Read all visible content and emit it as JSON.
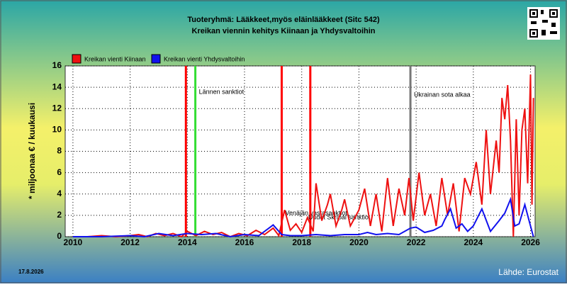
{
  "chart_data": {
    "type": "line",
    "title": "Tuoteryhmä: Lääkkeet,myös eläinlääkkeet (Sitc 542)",
    "subtitle": "Kreikan viennin kehitys  Kiinaan ja Yhdysvaltoihin",
    "y_label": "* miljoonaa € / kuukausi",
    "date": "17.8.2026",
    "source": "Lähde: Eurostat",
    "xlim": [
      2009.73,
      2026.16
    ],
    "xticks": [
      2010,
      2012,
      2014,
      2016,
      2018,
      2020,
      2022,
      2024,
      2026
    ],
    "ylim": [
      0,
      16
    ],
    "yticks": [
      0,
      2,
      4,
      6,
      8,
      10,
      12,
      14,
      16
    ],
    "grid": true,
    "events": [
      {
        "x": 2013.95,
        "color": "#ff0000"
      },
      {
        "x": 2014.28,
        "color": "#33dd33",
        "label": "Lännen sanktiot"
      },
      {
        "x": 2017.3,
        "color": "#ff0000",
        "label": "Venäjän vastasanktiot"
      },
      {
        "x": 2018.3,
        "color": "#ff0000",
        "label": "Uudet Skripal sanktiot"
      },
      {
        "x": 2021.8,
        "color": "#777777",
        "label": "Ukrainan sota alkaa"
      }
    ],
    "series": [
      {
        "name": "Kreikan vienti Kiinaan",
        "color": "#ee1111",
        "x": [
          2010.0,
          2010.5,
          2011.0,
          2011.5,
          2012.0,
          2012.3,
          2012.6,
          2012.9,
          2013.2,
          2013.5,
          2013.8,
          2014.0,
          2014.3,
          2014.6,
          2014.9,
          2015.2,
          2015.5,
          2015.8,
          2016.1,
          2016.4,
          2016.7,
          2017.0,
          2017.2,
          2017.4,
          2017.6,
          2017.8,
          2018.0,
          2018.2,
          2018.4,
          2018.5,
          2018.7,
          2018.9,
          2019.0,
          2019.2,
          2019.4,
          2019.5,
          2019.7,
          2019.9,
          2020.0,
          2020.2,
          2020.4,
          2020.6,
          2020.8,
          2021.0,
          2021.2,
          2021.4,
          2021.6,
          2021.75,
          2021.9,
          2022.1,
          2022.3,
          2022.5,
          2022.7,
          2022.9,
          2023.1,
          2023.3,
          2023.5,
          2023.7,
          2023.9,
          2024.1,
          2024.3,
          2024.45,
          2024.6,
          2024.8,
          2024.9,
          2025.0,
          2025.1,
          2025.2,
          2025.3,
          2025.4,
          2025.5,
          2025.6,
          2025.7,
          2025.8,
          2025.9,
          2026.0,
          2026.05,
          2026.1
        ],
        "values": [
          0,
          0,
          0.1,
          0,
          0.1,
          0.2,
          0,
          0.3,
          0.1,
          0.3,
          0,
          0.5,
          0.1,
          0.5,
          0.2,
          0.4,
          0,
          0.3,
          0.1,
          0.6,
          0.2,
          0.8,
          0.1,
          2.5,
          0.6,
          1.2,
          0.4,
          1.8,
          0.5,
          5,
          1.5,
          3,
          4,
          1,
          2.5,
          3.5,
          1,
          2,
          2.5,
          4.5,
          1,
          4,
          0.5,
          5.5,
          1,
          4.5,
          2,
          5.5,
          1.5,
          6,
          2,
          4,
          1,
          5.5,
          2,
          5,
          0.5,
          5.5,
          4,
          7,
          3,
          10,
          4,
          9,
          6,
          13,
          11,
          14.2,
          9,
          0,
          11,
          2,
          10,
          12,
          5,
          15.2,
          3,
          13
        ]
      },
      {
        "name": "Kreikan vienti Yhdysvaltoihin",
        "color": "#1111ee",
        "x": [
          2010.0,
          2011.0,
          2012.0,
          2012.5,
          2013.0,
          2013.5,
          2014.0,
          2014.5,
          2015.0,
          2015.5,
          2016.0,
          2016.5,
          2017.0,
          2017.3,
          2017.6,
          2018.0,
          2018.5,
          2019.0,
          2019.5,
          2020.0,
          2020.3,
          2020.6,
          2021.0,
          2021.4,
          2021.8,
          2022.0,
          2022.3,
          2022.6,
          2022.9,
          2023.0,
          2023.2,
          2023.4,
          2023.6,
          2023.8,
          2024.0,
          2024.3,
          2024.6,
          2024.9,
          2025.1,
          2025.3,
          2025.45,
          2025.6,
          2025.8,
          2025.95,
          2026.1
        ],
        "values": [
          0,
          0,
          0.1,
          0,
          0.3,
          0.1,
          0.3,
          0.2,
          0.3,
          0,
          0.2,
          0.1,
          1.1,
          0.2,
          0.1,
          0.1,
          0.2,
          0.1,
          0.2,
          0.2,
          0.4,
          0.2,
          0.3,
          0.2,
          0.8,
          0.9,
          0.4,
          0.6,
          1,
          1.6,
          2.6,
          0.8,
          1.2,
          0.5,
          1,
          2.6,
          0.5,
          1.5,
          2.2,
          3.5,
          1,
          1.2,
          3,
          1.5,
          0
        ]
      }
    ]
  }
}
